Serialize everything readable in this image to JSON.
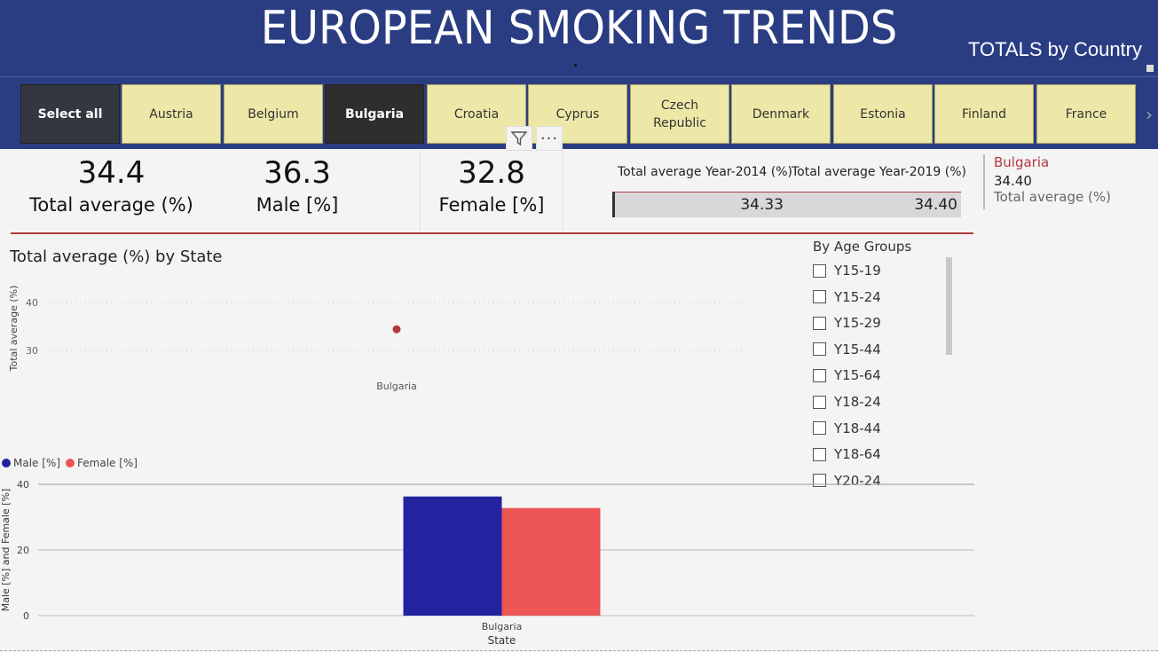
{
  "header": {
    "title": "EUROPEAN SMOKING TRENDS",
    "subtitle": "TOTALS by Country"
  },
  "slicer": {
    "items": [
      {
        "label": "Select all",
        "state": "select-all"
      },
      {
        "label": "Austria",
        "state": "normal"
      },
      {
        "label": "Belgium",
        "state": "normal"
      },
      {
        "label": "Bulgaria",
        "state": "selected"
      },
      {
        "label": "Croatia",
        "state": "normal"
      },
      {
        "label": "Cyprus",
        "state": "normal"
      },
      {
        "label": "Czech Republic",
        "state": "normal"
      },
      {
        "label": "Denmark",
        "state": "normal"
      },
      {
        "label": "Estonia",
        "state": "normal"
      },
      {
        "label": "Finland",
        "state": "normal"
      },
      {
        "label": "France",
        "state": "normal"
      }
    ],
    "more_label": "···"
  },
  "kpis": {
    "total": {
      "value": "34.4",
      "label": "Total average (%)"
    },
    "male": {
      "value": "36.3",
      "label": "Male [%]"
    },
    "female": {
      "value": "32.8",
      "label": "Female [%]"
    }
  },
  "year_table": {
    "col1": "Total average Year-2014 (%)",
    "col2": "Total average Year-2019 (%)",
    "val1": "34.33",
    "val2": "34.40"
  },
  "card": {
    "country": "Bulgaria",
    "value": "34.40",
    "label": "Total average (%)"
  },
  "age_groups": {
    "title": "By Age Groups",
    "items": [
      "Y15-19",
      "Y15-24",
      "Y15-29",
      "Y15-44",
      "Y15-64",
      "Y18-24",
      "Y18-44",
      "Y18-64",
      "Y20-24"
    ]
  },
  "colors": {
    "header_bg": "#2a3d82",
    "chip_bg": "#ede8a8",
    "accent_red": "#b0393e",
    "male": "#2323a0",
    "female": "#ee5656"
  },
  "chart_data": [
    {
      "type": "scatter",
      "title": "Total average (%) by State",
      "ylabel": "Total average (%)",
      "xlabel": "",
      "categories": [
        "Bulgaria"
      ],
      "values": [
        34.4
      ],
      "ylim": [
        20,
        45
      ],
      "yticks": [
        30,
        40
      ],
      "grid": true
    },
    {
      "type": "bar",
      "title": "",
      "xlabel": "State",
      "ylabel": "Male [%] and Female [%]",
      "categories": [
        "Bulgaria"
      ],
      "series": [
        {
          "name": "Male [%]",
          "values": [
            36.3
          ]
        },
        {
          "name": "Female [%]",
          "values": [
            32.8
          ]
        }
      ],
      "ylim": [
        0,
        40
      ],
      "yticks": [
        0,
        20,
        40
      ],
      "legend": "top-left",
      "grid": true
    }
  ]
}
